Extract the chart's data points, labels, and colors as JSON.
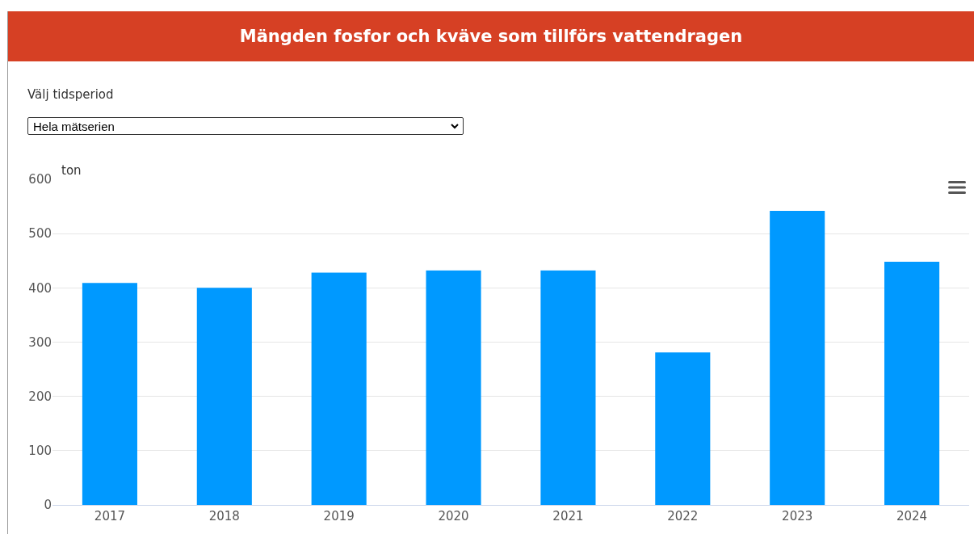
{
  "chart_data": {
    "type": "bar",
    "title": "Mängden fosfor och kväve som tillförs vattendragen",
    "ylabel": "ton",
    "annotations": [
      "Välj tidsperiod",
      "Hela mätserien"
    ],
    "categories": [
      "2017",
      "2018",
      "2019",
      "2020",
      "2021",
      "2022",
      "2023",
      "2024"
    ],
    "values": [
      409,
      400,
      428,
      432,
      432,
      281,
      542,
      448
    ],
    "color": "#0099ff",
    "ylim": [
      0,
      600
    ],
    "yticks": [
      0,
      100,
      200,
      300,
      400,
      500,
      600
    ],
    "grid": "y",
    "legend": false
  }
}
